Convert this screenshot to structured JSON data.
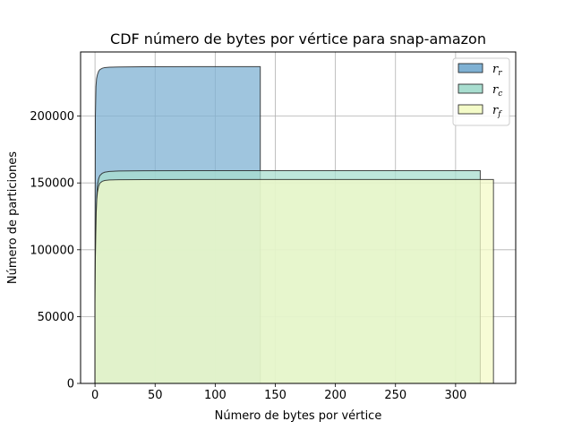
{
  "chart_data": {
    "type": "area",
    "title": "CDF número de bytes por vértice para snap-amazon",
    "xlabel": "Número de bytes por vértice",
    "ylabel": "Número de particiones",
    "xlim": [
      -12,
      350
    ],
    "ylim": [
      0,
      248000
    ],
    "xticks": [
      0,
      50,
      100,
      150,
      200,
      250,
      300
    ],
    "yticks": [
      0,
      50000,
      100000,
      150000,
      200000
    ],
    "grid": true,
    "legend_position": "top-right",
    "series": [
      {
        "name": "r_r",
        "legend_base": "r",
        "legend_sub": "r",
        "color": "#7fb1d3",
        "x": [
          0,
          0.3,
          0.8,
          1.3,
          2,
          3,
          4,
          6,
          8,
          12,
          20,
          40,
          80,
          137.5
        ],
        "y": [
          60000,
          200000,
          222000,
          228000,
          231000,
          233500,
          234800,
          235800,
          236300,
          236600,
          236800,
          236900,
          237000,
          237000
        ]
      },
      {
        "name": "r_c",
        "legend_base": "r",
        "legend_sub": "c",
        "color": "#a8ddcf",
        "x": [
          0,
          0.3,
          1,
          1.5,
          2,
          3,
          4,
          6,
          8,
          12,
          20,
          40,
          80,
          320.5
        ],
        "y": [
          60000,
          95000,
          128000,
          140000,
          148000,
          153000,
          155500,
          157200,
          158000,
          158600,
          158900,
          159100,
          159200,
          159200
        ]
      },
      {
        "name": "r_f",
        "legend_base": "r",
        "legend_sub": "f",
        "color": "#f4fbc8",
        "x": [
          0,
          0.3,
          1,
          1.5,
          2,
          3,
          4,
          6,
          8,
          12,
          20,
          40,
          80,
          331.5
        ],
        "y": [
          60000,
          95000,
          128000,
          138000,
          143000,
          147500,
          149800,
          151200,
          151800,
          152200,
          152400,
          152500,
          152600,
          152600
        ]
      }
    ]
  }
}
